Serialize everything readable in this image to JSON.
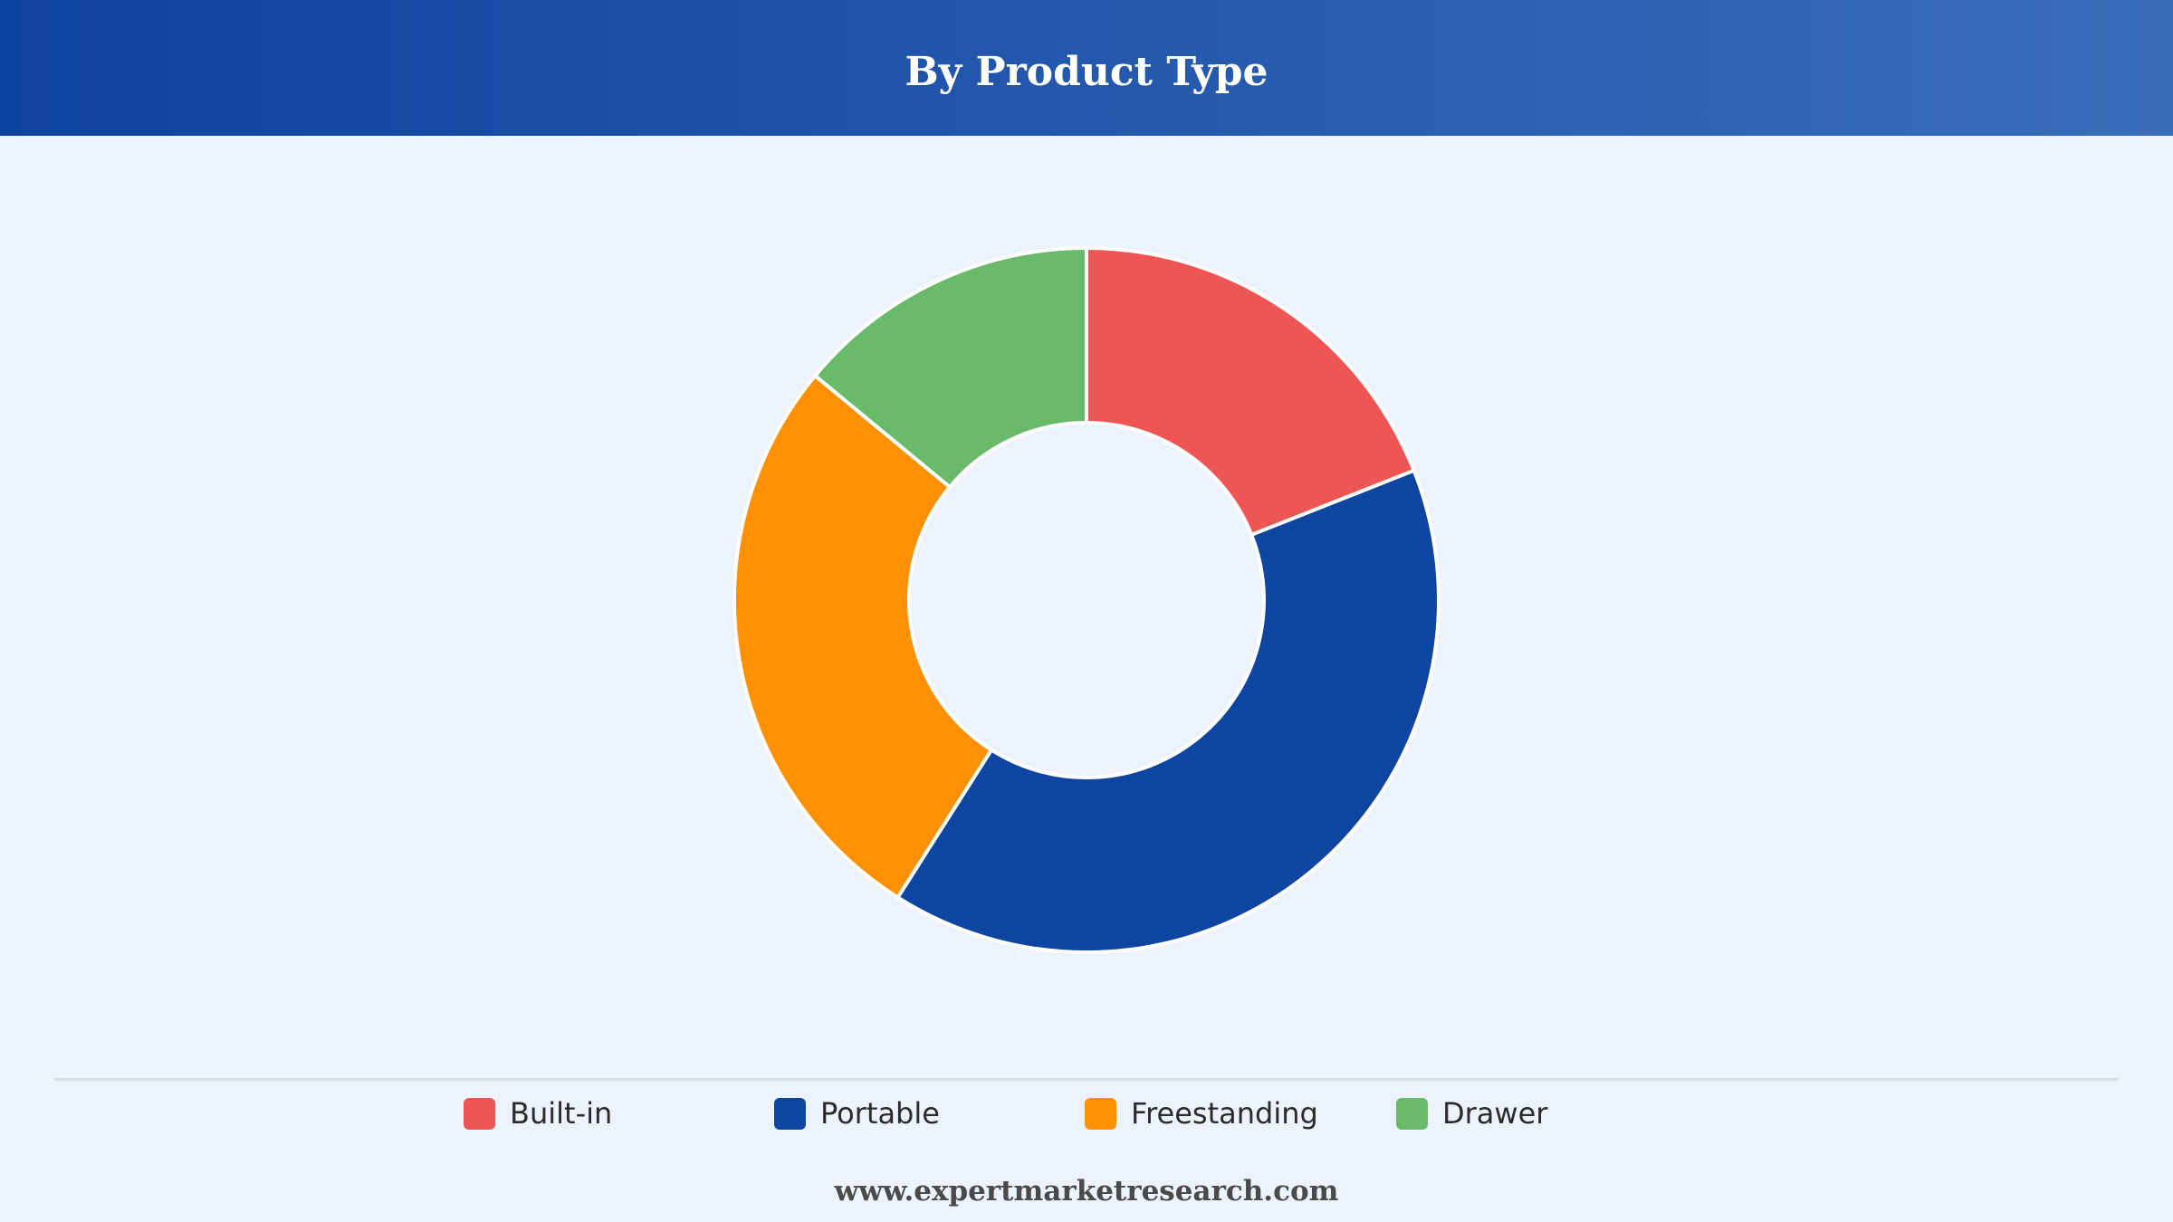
{
  "header": {
    "title": "By Product Type"
  },
  "chart_data": {
    "type": "pie",
    "variant": "donut",
    "title": "By Product Type",
    "categories": [
      "Built-in",
      "Portable",
      "Freestanding",
      "Drawer"
    ],
    "values": [
      19,
      40,
      27,
      14
    ],
    "unit": "%",
    "colors": [
      "#ef5554",
      "#0d45a1",
      "#ff9001",
      "#69bb6b"
    ],
    "legend_position": "bottom"
  },
  "legend": {
    "items": [
      {
        "label": "Built-in",
        "color": "#ef5554"
      },
      {
        "label": "Portable",
        "color": "#0d45a1"
      },
      {
        "label": "Freestanding",
        "color": "#ff9001"
      },
      {
        "label": "Drawer",
        "color": "#69bb6b"
      }
    ]
  },
  "footer": {
    "website": "www.expertmarketresearch.com"
  },
  "theme": {
    "background": "#ecf3fc",
    "header_start": "#0d43a0",
    "header_end": "#3a6db8"
  }
}
